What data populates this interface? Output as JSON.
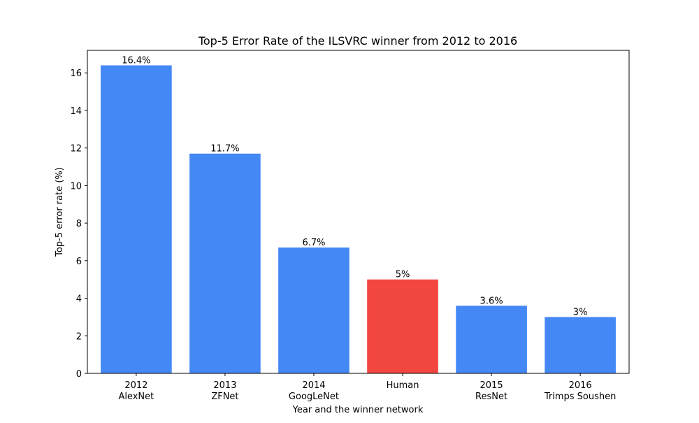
{
  "chart_data": {
    "type": "bar",
    "title": "Top-5 Error Rate of the ILSVRC winner from 2012 to 2016",
    "xlabel": "Year and the winner network",
    "ylabel": "Top-5 error rate (%)",
    "categories": [
      [
        "2012",
        "AlexNet"
      ],
      [
        "2013",
        "ZFNet"
      ],
      [
        "2014",
        "GoogLeNet"
      ],
      [
        "Human"
      ],
      [
        "2015",
        "ResNet"
      ],
      [
        "2016",
        "Trimps Soushen"
      ]
    ],
    "values": [
      16.4,
      11.7,
      6.7,
      5,
      3.6,
      3
    ],
    "data_labels": [
      "16.4%",
      "11.7%",
      "6.7%",
      "5%",
      "3.6%",
      "3%"
    ],
    "colors": [
      "#4488f5",
      "#4488f5",
      "#4488f5",
      "#f24641",
      "#4488f5",
      "#4488f5"
    ],
    "ylim": [
      0,
      17.2
    ],
    "yticks": [
      0,
      2,
      4,
      6,
      8,
      10,
      12,
      14,
      16
    ],
    "grid": false,
    "legend": "none"
  }
}
